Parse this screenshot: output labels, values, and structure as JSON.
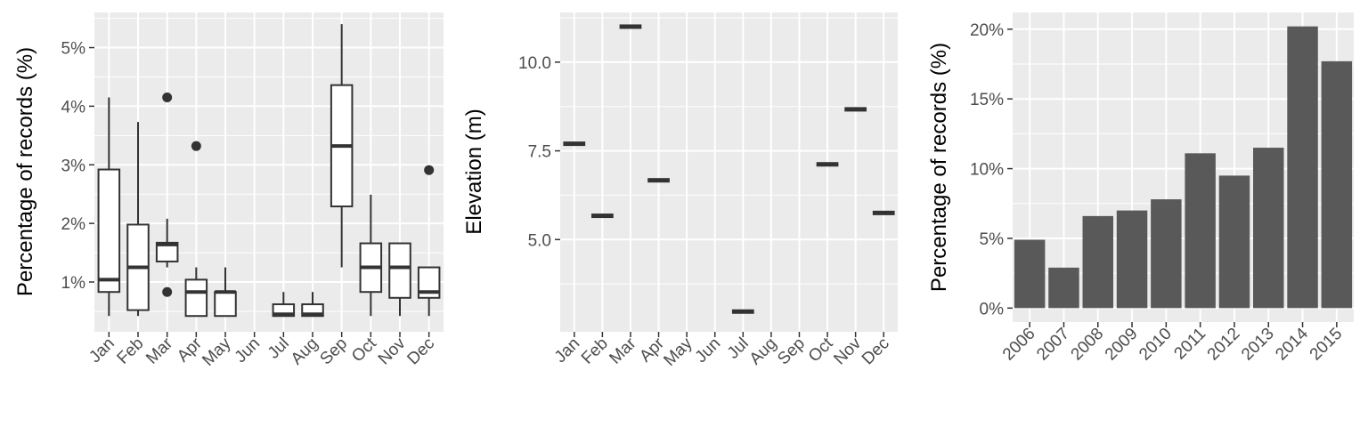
{
  "chart_data": [
    {
      "type": "box",
      "xlabel": "",
      "ylabel": "Percentage of records (%)",
      "categories": [
        "Jan",
        "Feb",
        "Mar",
        "Apr",
        "May",
        "Jun",
        "Jul",
        "Aug",
        "Sep",
        "Oct",
        "Nov",
        "Dec"
      ],
      "ylim": [
        0.15,
        5.6
      ],
      "yticks": [
        1,
        2,
        3,
        4,
        5
      ],
      "ytick_labels": [
        "1%",
        "2%",
        "3%",
        "4%",
        "5%"
      ],
      "boxes": [
        {
          "category": "Jan",
          "min": 0.42,
          "q1": 0.83,
          "median": 1.04,
          "q3": 2.92,
          "max": 4.15,
          "outliers": []
        },
        {
          "category": "Feb",
          "min": 0.42,
          "q1": 0.52,
          "median": 1.25,
          "q3": 1.98,
          "max": 3.73,
          "outliers": []
        },
        {
          "category": "Mar",
          "min": 1.25,
          "q1": 1.35,
          "median": 1.64,
          "q3": 1.67,
          "max": 2.08,
          "outliers": [
            4.15,
            0.83
          ]
        },
        {
          "category": "Apr",
          "min": 0.42,
          "q1": 0.42,
          "median": 0.83,
          "q3": 1.04,
          "max": 1.25,
          "outliers": [
            3.32
          ]
        },
        {
          "category": "May",
          "min": 0.42,
          "q1": 0.42,
          "median": 0.83,
          "q3": 0.83,
          "max": 1.25,
          "outliers": []
        },
        {
          "category": "Jul",
          "min": 0.42,
          "q1": 0.42,
          "median": 0.45,
          "q3": 0.62,
          "max": 0.83,
          "outliers": []
        },
        {
          "category": "Aug",
          "min": 0.42,
          "q1": 0.42,
          "median": 0.45,
          "q3": 0.62,
          "max": 0.83,
          "outliers": []
        },
        {
          "category": "Sep",
          "min": 1.25,
          "q1": 2.29,
          "median": 3.32,
          "q3": 4.36,
          "max": 5.4,
          "outliers": []
        },
        {
          "category": "Oct",
          "min": 0.42,
          "q1": 0.83,
          "median": 1.25,
          "q3": 1.66,
          "max": 2.49,
          "outliers": []
        },
        {
          "category": "Nov",
          "min": 0.42,
          "q1": 0.73,
          "median": 1.25,
          "q3": 1.66,
          "max": 1.66,
          "outliers": []
        },
        {
          "category": "Dec",
          "min": 0.42,
          "q1": 0.73,
          "median": 0.83,
          "q3": 1.25,
          "max": 1.25,
          "outliers": [
            2.91
          ]
        }
      ]
    },
    {
      "type": "box",
      "xlabel": "",
      "ylabel": "Elevation (m)",
      "categories": [
        "Jan",
        "Feb",
        "Mar",
        "Apr",
        "May",
        "Jun",
        "Jul",
        "Aug",
        "Sep",
        "Oct",
        "Nov",
        "Dec"
      ],
      "ylim": [
        2.4,
        11.4
      ],
      "yticks": [
        5.0,
        7.5,
        10.0
      ],
      "ytick_labels": [
        "5.0",
        "7.5",
        "10.0"
      ],
      "values": [
        {
          "category": "Jan",
          "value": 7.7
        },
        {
          "category": "Feb",
          "value": 5.67
        },
        {
          "category": "Mar",
          "value": 11.0
        },
        {
          "category": "Apr",
          "value": 6.67
        },
        {
          "category": "Jul",
          "value": 2.97
        },
        {
          "category": "Oct",
          "value": 7.12
        },
        {
          "category": "Nov",
          "value": 8.67
        },
        {
          "category": "Dec",
          "value": 5.75
        }
      ]
    },
    {
      "type": "bar",
      "xlabel": "",
      "ylabel": "Percentage of records (%)",
      "categories": [
        "2006",
        "2007",
        "2008",
        "2009",
        "2010",
        "2011",
        "2012",
        "2013",
        "2014",
        "2015"
      ],
      "values": [
        4.9,
        2.9,
        6.6,
        7.0,
        7.8,
        11.1,
        9.5,
        11.5,
        20.2,
        17.7
      ],
      "ylim": [
        -1.0,
        21.2
      ],
      "yticks": [
        0,
        5,
        10,
        15,
        20
      ],
      "ytick_labels": [
        "0%",
        "5%",
        "10%",
        "15%",
        "20%"
      ],
      "bar_color": "#595959"
    }
  ],
  "style": {
    "panel_bg": "#ebebeb",
    "grid_color": "#ffffff",
    "box_line": "#333333",
    "box_fill": "#ffffff",
    "bar_fill": "#595959",
    "tick_text": "#4d4d4d",
    "tick_mark": "#333333"
  }
}
